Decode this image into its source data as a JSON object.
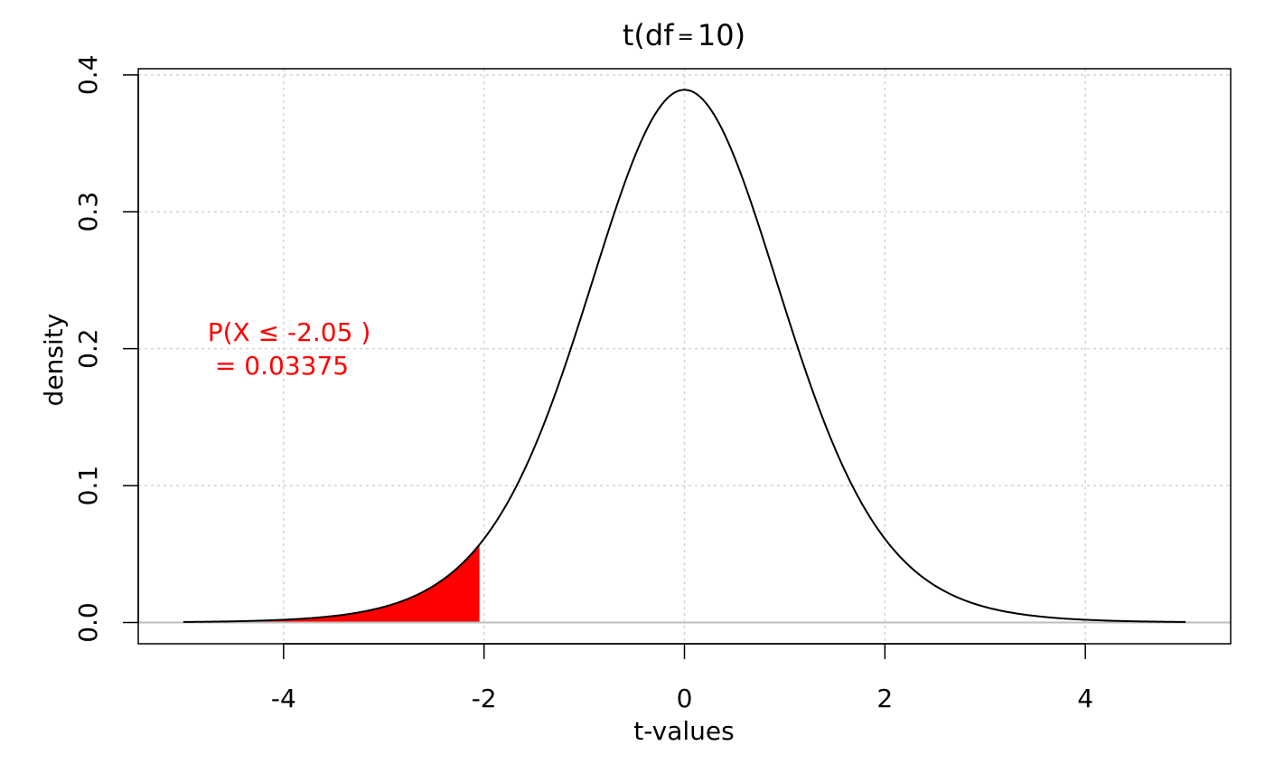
{
  "chart_data": {
    "type": "area",
    "title": "t(df = 10)",
    "title_parts": {
      "func": "t",
      "open": "(",
      "df": "df",
      "eq": "=",
      "value": "10",
      "close": ")"
    },
    "xlabel": "t-values",
    "ylabel": "density",
    "xlim": [
      -5.45,
      5.45
    ],
    "ylim": [
      -0.0155,
      0.4045
    ],
    "x_ticks": [
      -4,
      -2,
      0,
      2,
      4
    ],
    "y_ticks": [
      0.0,
      0.1,
      0.2,
      0.3,
      0.4
    ],
    "x_tick_labels": [
      "-4",
      "-2",
      "0",
      "2",
      "4"
    ],
    "y_tick_labels": [
      "0.0",
      "0.1",
      "0.2",
      "0.3",
      "0.4"
    ],
    "grid": true,
    "distribution": {
      "name": "Student t",
      "df": 10,
      "x_range": [
        -5,
        5
      ]
    },
    "shaded_region": {
      "from": -5,
      "to": -2.05,
      "color": "#ff0000"
    },
    "annotation": {
      "line1": "P(X ≤ -2.05 )",
      "line2": " = 0.03375",
      "color": "#ff0000"
    },
    "curve_color": "#000000",
    "baseline_color": "#bebebe",
    "grid_color": "#d3d3d3"
  }
}
